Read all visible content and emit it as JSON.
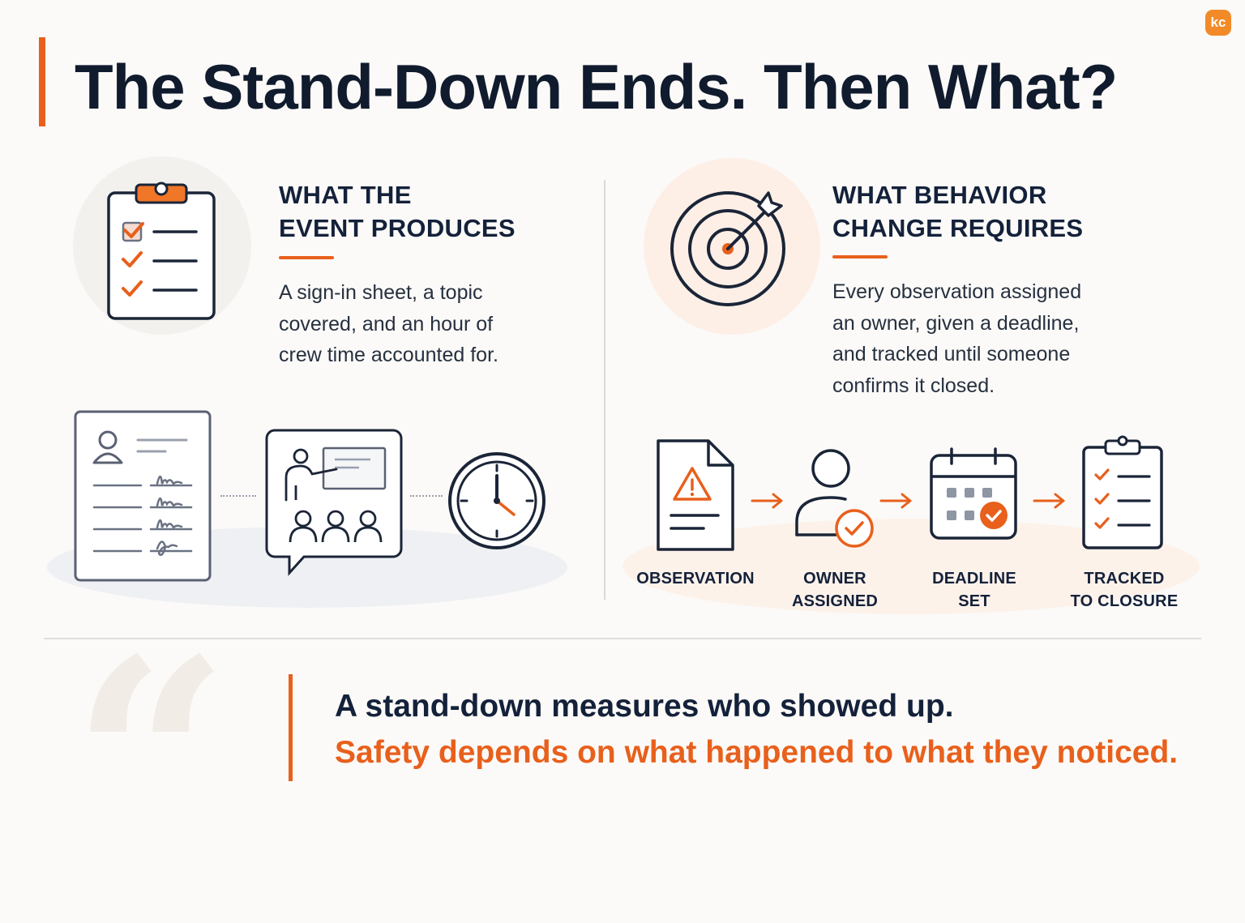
{
  "title": "The Stand-Down Ends. Then What?",
  "logo_text": "kc",
  "colors": {
    "accent": "#e8601c",
    "navy": "#14213a",
    "gray": "#5a6173",
    "background": "#fbfaf8"
  },
  "left_panel": {
    "heading": "WHAT THE\nEVENT PRODUCES",
    "body": "A sign-in sheet, a topic\ncovered, and an hour of\ncrew time accounted for.",
    "icon": "clipboard-checklist-icon",
    "illustrations": [
      "sign-in-sheet-icon",
      "presentation-icon",
      "clock-icon"
    ]
  },
  "right_panel": {
    "heading": "WHAT BEHAVIOR\nCHANGE REQUIRES",
    "body": "Every observation assigned\nan owner, given a deadline,\nand tracked until someone\nconfirms it closed.",
    "icon": "target-arrow-icon",
    "steps": [
      {
        "label": "OBSERVATION",
        "icon": "warning-document-icon"
      },
      {
        "label": "OWNER\nASSIGNED",
        "icon": "user-check-icon"
      },
      {
        "label": "DEADLINE\nSET",
        "icon": "calendar-check-icon"
      },
      {
        "label": "TRACKED\nTO CLOSURE",
        "icon": "clipboard-checklist-icon"
      }
    ]
  },
  "quote": {
    "line1": "A stand-down measures who showed up.",
    "line2": "Safety depends on what happened to what they noticed."
  }
}
